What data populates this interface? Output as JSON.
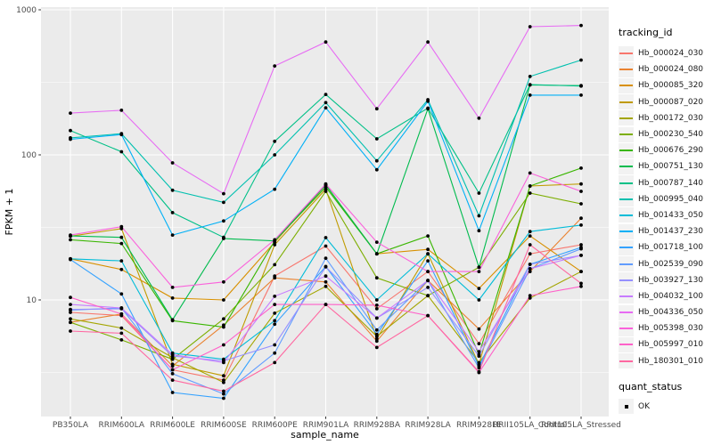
{
  "figure": {
    "y_axis_label": "FPKM + 1",
    "x_axis_label": "sample_name"
  },
  "legend": {
    "title": "tracking_id"
  },
  "legend2": {
    "title": "quant_status",
    "item_label": "OK"
  },
  "colors": {
    "panel_bg": "#EBEBEB",
    "grid": "#FFFFFF",
    "point": "#000000",
    "tick_text": "#4D4D4D",
    "axis_text": "#000000",
    "legend_key_bg": "#F2F2F2"
  },
  "chart_data": {
    "type": "line",
    "title": "",
    "xlabel": "sample_name",
    "ylabel": "FPKM + 1",
    "y_scale": "log10",
    "ylim": [
      1.55,
      1050
    ],
    "y_major_ticks": [
      10,
      100,
      1000
    ],
    "y_minor_ticks": [
      3.162,
      31.62,
      316.2
    ],
    "grid": "on",
    "legend_position": "right",
    "point_marker": "black dot on every value (quant_status = OK)",
    "categories": [
      "PB350LA",
      "RRIM600LA",
      "RRIM600LE",
      "RRIM600SE",
      "RRIM600PE",
      "RRIM901LA",
      "RRIM928BA",
      "RRIM928LA",
      "RRIM928LE",
      "RRII105LA_Control",
      "RRII105LA_Stressed"
    ],
    "series": [
      {
        "name": "Hb_000024_030",
        "color": "#F8766D",
        "values": [
          8.2,
          7.8,
          3.3,
          2.8,
          14.6,
          23.5,
          8.7,
          15.7,
          5.0,
          20.8,
          24
        ]
      },
      {
        "name": "Hb_000024_080",
        "color": "#EA8331",
        "values": [
          7.0,
          8.0,
          3.5,
          6.7,
          14.2,
          13.3,
          5.2,
          13.6,
          6.3,
          15.7,
          36.6
        ]
      },
      {
        "name": "Hb_000085_320",
        "color": "#D89000",
        "values": [
          19.2,
          16.2,
          10.3,
          10,
          25,
          62,
          20.8,
          22.3,
          12,
          27.6,
          15.7
        ]
      },
      {
        "name": "Hb_000087_020",
        "color": "#C09B00",
        "values": [
          27.5,
          31,
          3.6,
          3.0,
          24,
          58,
          5.4,
          20.8,
          3.6,
          61,
          63
        ]
      },
      {
        "name": "Hb_000172_030",
        "color": "#A3A500",
        "values": [
          7.4,
          6.4,
          4.0,
          2.7,
          8.1,
          12.4,
          5.6,
          10.7,
          3.7,
          10.3,
          15.7
        ]
      },
      {
        "name": "Hb_000230_540",
        "color": "#7CAE00",
        "values": [
          7.0,
          5.3,
          3.9,
          7.4,
          17.5,
          56,
          14.2,
          10.7,
          16.8,
          54.5,
          46
        ]
      },
      {
        "name": "Hb_000676_290",
        "color": "#39B600",
        "values": [
          26,
          24.5,
          7.2,
          6.5,
          25.5,
          60,
          20.8,
          27.6,
          4.2,
          61,
          81
        ]
      },
      {
        "name": "Hb_000751_130",
        "color": "#00BB4E",
        "values": [
          27.6,
          27,
          7.3,
          26.5,
          25.5,
          62,
          20.8,
          208,
          16.8,
          303,
          300
        ]
      },
      {
        "name": "Hb_000787_140",
        "color": "#00C087",
        "values": [
          147,
          105,
          40,
          27,
          124,
          261,
          129,
          210,
          54.5,
          305,
          298
        ]
      },
      {
        "name": "Hb_000995_040",
        "color": "#00C0AF",
        "values": [
          131,
          140,
          57,
          47,
          100,
          229,
          91,
          240,
          38,
          347,
          450
        ]
      },
      {
        "name": "Hb_001433_050",
        "color": "#00BCD8",
        "values": [
          19.2,
          18.6,
          4.3,
          3.9,
          7.2,
          26.9,
          10,
          20.8,
          10,
          29.6,
          32.8
        ]
      },
      {
        "name": "Hb_001437_230",
        "color": "#00B0F6",
        "values": [
          128,
          138,
          28,
          35,
          58,
          211,
          79,
          234,
          30,
          258,
          258
        ]
      },
      {
        "name": "Hb_001718_100",
        "color": "#35A2FF",
        "values": [
          19.0,
          11,
          2.3,
          2.1,
          6.8,
          17,
          5.8,
          18.6,
          3.5,
          17.6,
          23
        ]
      },
      {
        "name": "Hb_002539_090",
        "color": "#619CFF",
        "values": [
          8.5,
          8.8,
          3.1,
          2.25,
          4.3,
          19.4,
          6.2,
          13.6,
          3.4,
          16.4,
          22.5
        ]
      },
      {
        "name": "Hb_003927_130",
        "color": "#9590FF",
        "values": [
          8.6,
          8.7,
          4.1,
          3.8,
          4.9,
          16.9,
          7.5,
          12.2,
          4.1,
          17.6,
          20.3
        ]
      },
      {
        "name": "Hb_004032_100",
        "color": "#C77CFF",
        "values": [
          9.3,
          8.8,
          4.2,
          3.7,
          10.6,
          14.6,
          7.5,
          13.6,
          4.4,
          16.4,
          20.3
        ]
      },
      {
        "name": "Hb_004336_050",
        "color": "#E76BF3",
        "values": [
          194,
          203,
          88,
          54,
          410,
          600,
          208,
          600,
          179,
          765,
          780
        ]
      },
      {
        "name": "Hb_005398_030",
        "color": "#FA62DB",
        "values": [
          28,
          32,
          12.2,
          13.3,
          26,
          63,
          25,
          15.7,
          15.7,
          75,
          56
        ]
      },
      {
        "name": "Hb_005997_010",
        "color": "#FF61C9",
        "values": [
          10.4,
          8.0,
          3.3,
          4.9,
          9.3,
          9.3,
          9.2,
          7.8,
          3.16,
          10.7,
          12.4
        ]
      },
      {
        "name": "Hb_180301_010",
        "color": "#FF68A1",
        "values": [
          6.1,
          5.9,
          2.8,
          2.35,
          3.7,
          9.3,
          4.7,
          7.8,
          3.2,
          24,
          13
        ]
      }
    ]
  }
}
